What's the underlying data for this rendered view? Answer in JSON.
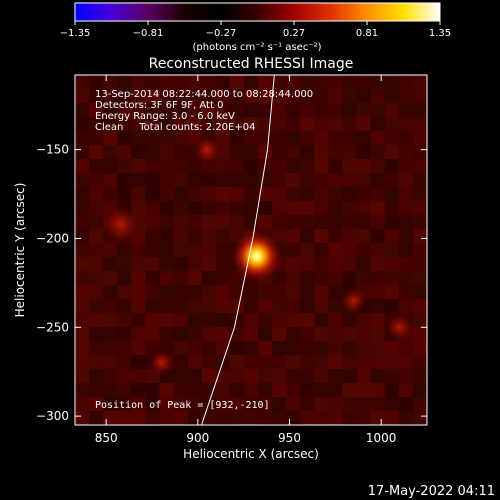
{
  "colorbar": {
    "tick_labels": [
      "-1.35",
      "-0.81",
      "-0.27",
      "0.27",
      "0.81",
      "1.35"
    ],
    "range": [
      -1.35,
      1.35
    ],
    "unit_label": "(photons cm⁻² s⁻¹ asec⁻²)",
    "colormap": [
      "#0000ff",
      "#4a00d8",
      "#5a0060",
      "#1a0000",
      "#000000",
      "#3a0000",
      "#a00000",
      "#e03000",
      "#ff9000",
      "#ffe000",
      "#ffffff"
    ]
  },
  "chart_data": {
    "type": "heatmap",
    "title": "Reconstructed RHESSI Image",
    "xlabel": "Heliocentric X (arcsec)",
    "ylabel": "Heliocentric Y (arcsec)",
    "xlim": [
      833,
      1025
    ],
    "ylim": [
      -305,
      -108
    ],
    "xticks": [
      850,
      900,
      950,
      1000
    ],
    "yticks": [
      -150,
      -200,
      -250,
      -300
    ],
    "xtick_labels": [
      "850",
      "900",
      "950",
      "1000"
    ],
    "ytick_labels": [
      "−150",
      "−200",
      "−250",
      "−300"
    ],
    "info_lines": [
      "13-Sep-2014 08:22:44.000 to 08:28:44.000",
      "Detectors: 3F 6F 9F, Att 0",
      "Energy Range: 3.0 - 6.0 keV",
      "Clean     Total counts: 2.20E+04"
    ],
    "peak_label": "Position of Peak = [932,-210]",
    "peak": {
      "x": 932,
      "y": -210,
      "value": 1.35
    },
    "secondary_sources": [
      {
        "x": 858,
        "y": -192,
        "value": 0.35
      },
      {
        "x": 905,
        "y": -150,
        "value": 0.2
      },
      {
        "x": 985,
        "y": -235,
        "value": 0.18
      },
      {
        "x": 1010,
        "y": -250,
        "value": 0.2
      },
      {
        "x": 880,
        "y": -270,
        "value": 0.15
      }
    ],
    "limb_curve": [
      [
        942,
        -105
      ],
      [
        938,
        -150
      ],
      [
        930,
        -200
      ],
      [
        920,
        -250
      ],
      [
        902,
        -305
      ]
    ]
  },
  "footer": {
    "timestamp": "17-May-2022 04:11"
  }
}
